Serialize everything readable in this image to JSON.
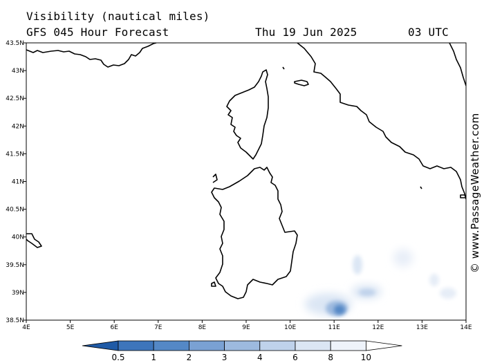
{
  "header": {
    "title": "Visibility (nautical miles)",
    "subtitle": "GFS 045 Hour Forecast",
    "date": "Thu 19 Jun 2025",
    "time": "03 UTC"
  },
  "credit": "© www.PassageWeather.com",
  "map": {
    "lon_range": [
      4,
      14
    ],
    "lat_range": [
      38.5,
      43.5
    ],
    "lon_ticks": [
      "4E",
      "5E",
      "6E",
      "7E",
      "8E",
      "9E",
      "10E",
      "11E",
      "12E",
      "13E",
      "14E"
    ],
    "lat_ticks": [
      "43.5N",
      "43N",
      "42.5N",
      "42N",
      "41.5N",
      "41N",
      "40.5N",
      "40N",
      "39.5N",
      "39N",
      "38.5N"
    ],
    "regions": [
      "Corsica",
      "Sardinia",
      "Italy coast",
      "Balearic tip"
    ]
  },
  "colorbar": {
    "labels": [
      "0.5",
      "1",
      "2",
      "3",
      "4",
      "6",
      "8",
      "10"
    ],
    "colors": [
      "#3d75bb",
      "#5488c6",
      "#7aa1d3",
      "#9dbadf",
      "#bfd2eb",
      "#dbe6f4",
      "#eef3fa",
      "#ffffff"
    ]
  },
  "low_visibility_areas": [
    {
      "lon": 11.1,
      "lat": 38.7,
      "level": "1-2"
    },
    {
      "lon": 11.7,
      "lat": 39.0,
      "level": "3-4"
    },
    {
      "lon": 11.5,
      "lat": 39.5,
      "level": "6-8"
    },
    {
      "lon": 12.1,
      "lat": 39.6,
      "level": "8-10"
    },
    {
      "lon": 13.4,
      "lat": 39.0,
      "level": "8-10"
    }
  ]
}
